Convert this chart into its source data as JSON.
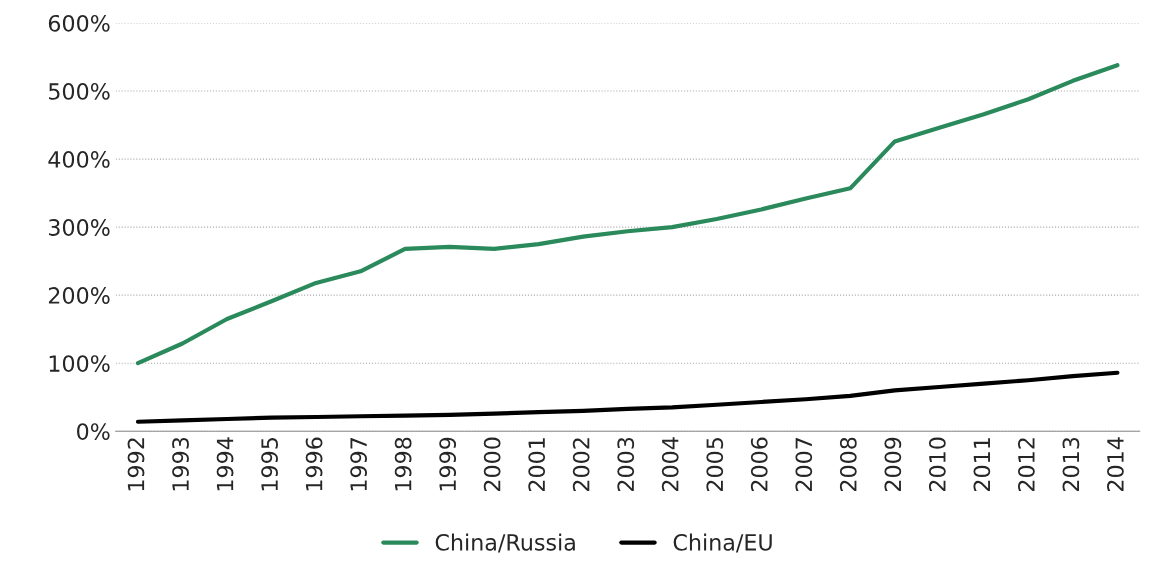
{
  "chart_data": {
    "type": "line",
    "categories": [
      "1992",
      "1993",
      "1994",
      "1995",
      "1996",
      "1997",
      "1998",
      "1999",
      "2000",
      "2001",
      "2002",
      "2003",
      "2004",
      "2005",
      "2006",
      "2007",
      "2008",
      "2009",
      "2010",
      "2011",
      "2012",
      "2013",
      "2014"
    ],
    "series": [
      {
        "name": "China/Russia",
        "color": "#2a8a5c",
        "values": [
          100,
          129,
          165,
          191,
          218,
          235,
          268,
          271,
          268,
          275,
          286,
          294,
          300,
          312,
          326,
          342,
          357,
          426,
          446,
          466,
          488,
          515,
          538
        ]
      },
      {
        "name": "China/EU",
        "color": "#000000",
        "values": [
          14,
          16,
          18,
          20,
          21,
          22,
          23,
          24,
          26,
          28,
          30,
          33,
          35,
          39,
          43,
          47,
          52,
          60,
          65,
          70,
          75,
          81,
          86
        ]
      }
    ],
    "ylim": [
      0,
      600
    ],
    "yticks": [
      {
        "value": 0,
        "label": "0%"
      },
      {
        "value": 100,
        "label": "100%"
      },
      {
        "value": 200,
        "label": "200%"
      },
      {
        "value": 300,
        "label": "300%"
      },
      {
        "value": 400,
        "label": "400%"
      },
      {
        "value": 500,
        "label": "500%"
      },
      {
        "value": 600,
        "label": "600%"
      }
    ],
    "grid": "y",
    "legend": "bottom",
    "line_style": "solid"
  }
}
